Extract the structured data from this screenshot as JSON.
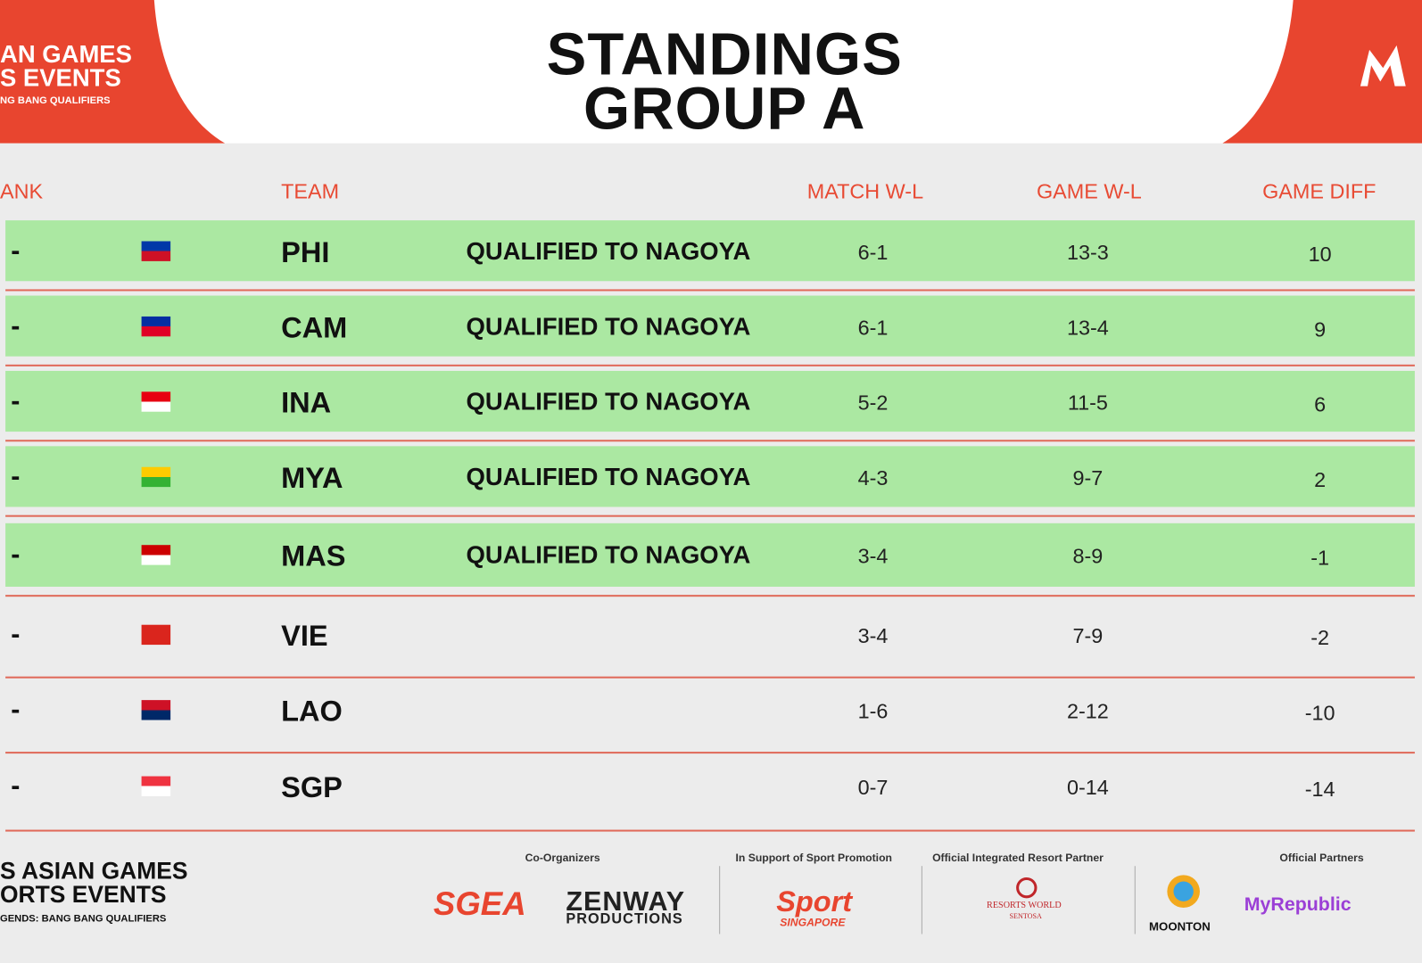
{
  "header": {
    "event_lines": [
      "AN GAMES",
      "S EVENTS",
      "NG BANG QUALIFIERS"
    ],
    "title": "STANDINGS",
    "subtitle": "GROUP A"
  },
  "table": {
    "columns": [
      "ANK",
      "TEAM",
      "MATCH W-L",
      "GAME W-L",
      "GAME DIFF"
    ],
    "rows": [
      [
        "-",
        "PHI",
        "QUALIFIED TO NAGOYA",
        "6-1",
        "13-3",
        10
      ],
      [
        "-",
        "CAM",
        "QUALIFIED TO NAGOYA",
        "6-1",
        "13-4",
        9
      ],
      [
        "-",
        "INA",
        "QUALIFIED TO NAGOYA",
        "5-2",
        "11-5",
        6
      ],
      [
        "-",
        "MYA",
        "QUALIFIED TO NAGOYA",
        "4-3",
        "9-7",
        2
      ],
      [
        "-",
        "MAS",
        "QUALIFIED TO NAGOYA",
        "3-4",
        "8-9",
        -1
      ],
      [
        "-",
        "VIE",
        "",
        "3-4",
        "7-9",
        -2
      ],
      [
        "-",
        "LAO",
        "",
        "1-6",
        "2-12",
        -10
      ],
      [
        "-",
        "SGP",
        "",
        "0-7",
        "0-14",
        -14
      ]
    ]
  },
  "footer": {
    "event_lines": [
      "S ASIAN GAMES",
      "ORTS EVENTS",
      "GENDS: BANG BANG QUALIFIERS"
    ],
    "sections": [
      "Co-Organizers",
      "In Support of Sport Promotion",
      "Official Integrated Resort Partner",
      "Official Partners"
    ],
    "logos": [
      "SGEA",
      "ZENWAY",
      "PRODUCTIONS",
      "Sport",
      "SINGAPORE",
      "RESORTS WORLD",
      "SENTOSA",
      "MOONTON",
      "MyRepublic"
    ]
  }
}
